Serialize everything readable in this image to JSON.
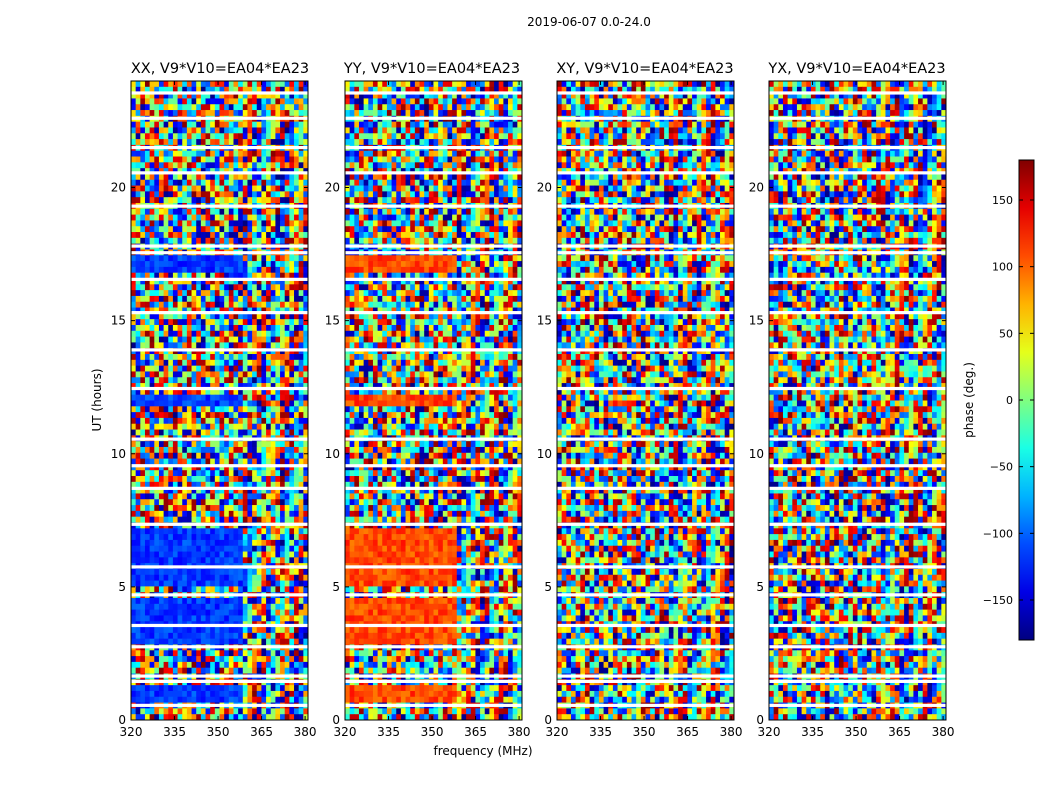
{
  "figure": {
    "suptitle": "2019-06-07 0.0-24.0"
  },
  "chart_data": [
    {
      "type": "heatmap",
      "title": "XX, V9*V10=EA04*EA23",
      "xlabel": "",
      "ylabel": "UT (hours)",
      "xlim": [
        320,
        381
      ],
      "ylim": [
        0,
        24
      ],
      "xticks": [
        "320",
        "335",
        "350",
        "365",
        "380"
      ],
      "xtick_values": [
        320,
        335,
        350,
        365,
        380
      ],
      "yticks": [
        "0",
        "5",
        "10",
        "15",
        "20"
      ],
      "ytick_values": [
        0,
        5,
        10,
        15,
        20
      ],
      "coherent_phase_deg": -115,
      "coherent_regions_hours": [
        [
          0.7,
          1.2
        ],
        [
          2.9,
          3.3
        ],
        [
          3.3,
          4.5
        ],
        [
          5.0,
          7.3
        ],
        [
          11.7,
          12.3
        ],
        [
          16.9,
          17.4
        ]
      ],
      "flagged_rows_hours": [
        0.55,
        1.45,
        1.65,
        2.75,
        3.55,
        4.7,
        5.75,
        7.35,
        8.7,
        9.55,
        10.55,
        12.45,
        13.9,
        15.3,
        16.55,
        17.55,
        17.8,
        19.3,
        20.55,
        21.5,
        22.6,
        23.55
      ]
    },
    {
      "type": "heatmap",
      "title": "YY, V9*V10=EA04*EA23",
      "xlabel": "frequency (MHz)",
      "ylabel": "",
      "xlim": [
        320,
        381
      ],
      "ylim": [
        0,
        24
      ],
      "xticks": [
        "320",
        "335",
        "350",
        "365",
        "380"
      ],
      "xtick_values": [
        320,
        335,
        350,
        365,
        380
      ],
      "yticks": [
        "0",
        "5",
        "10",
        "15",
        "20"
      ],
      "ytick_values": [
        0,
        5,
        10,
        15,
        20
      ],
      "coherent_phase_deg": 110,
      "coherent_regions_hours": [
        [
          0.7,
          1.2
        ],
        [
          2.9,
          3.3
        ],
        [
          3.3,
          4.5
        ],
        [
          5.0,
          7.3
        ],
        [
          11.7,
          12.3
        ],
        [
          16.9,
          17.4
        ]
      ],
      "flagged_rows_hours": [
        0.55,
        1.45,
        1.65,
        2.75,
        3.55,
        4.7,
        5.75,
        7.35,
        8.7,
        9.55,
        10.55,
        12.45,
        13.9,
        15.3,
        16.55,
        17.55,
        17.8,
        19.3,
        20.55,
        21.5,
        22.6,
        23.55
      ]
    },
    {
      "type": "heatmap",
      "title": "XY, V9*V10=EA04*EA23",
      "xlabel": "",
      "ylabel": "",
      "xlim": [
        320,
        381
      ],
      "ylim": [
        0,
        24
      ],
      "xticks": [
        "320",
        "335",
        "350",
        "365",
        "380"
      ],
      "xtick_values": [
        320,
        335,
        350,
        365,
        380
      ],
      "yticks": [
        "0",
        "5",
        "10",
        "15",
        "20"
      ],
      "ytick_values": [
        0,
        5,
        10,
        15,
        20
      ],
      "coherent_phase_deg": null,
      "coherent_regions_hours": [],
      "flagged_rows_hours": [
        0.55,
        1.45,
        1.65,
        2.75,
        3.55,
        4.7,
        5.75,
        7.35,
        8.7,
        9.55,
        10.55,
        12.45,
        13.9,
        15.3,
        16.55,
        17.55,
        17.8,
        19.3,
        20.55,
        21.5,
        22.6,
        23.55
      ]
    },
    {
      "type": "heatmap",
      "title": "YX, V9*V10=EA04*EA23",
      "xlabel": "",
      "ylabel": "",
      "xlim": [
        320,
        381
      ],
      "ylim": [
        0,
        24
      ],
      "xticks": [
        "320",
        "335",
        "350",
        "365",
        "380"
      ],
      "xtick_values": [
        320,
        335,
        350,
        365,
        380
      ],
      "yticks": [
        "0",
        "5",
        "10",
        "15",
        "20"
      ],
      "ytick_values": [
        0,
        5,
        10,
        15,
        20
      ],
      "coherent_phase_deg": null,
      "coherent_regions_hours": [],
      "flagged_rows_hours": [
        0.55,
        1.45,
        1.65,
        2.75,
        3.55,
        4.7,
        5.75,
        7.35,
        8.7,
        9.55,
        10.55,
        12.45,
        13.9,
        15.3,
        16.55,
        17.55,
        17.8,
        19.3,
        20.55,
        21.5,
        22.6,
        23.55
      ]
    }
  ],
  "colorbar": {
    "label": "phase (deg.)",
    "range": [
      -180,
      180
    ],
    "ticks": [
      "150",
      "100",
      "50",
      "0",
      "−50",
      "−100",
      "−150"
    ],
    "tick_values": [
      150,
      100,
      50,
      0,
      -50,
      -100,
      -150
    ],
    "colormap": "jet",
    "colormap_stops": [
      "#000080",
      "#0000ff",
      "#00ffff",
      "#ffff00",
      "#ff0000",
      "#800000"
    ]
  }
}
